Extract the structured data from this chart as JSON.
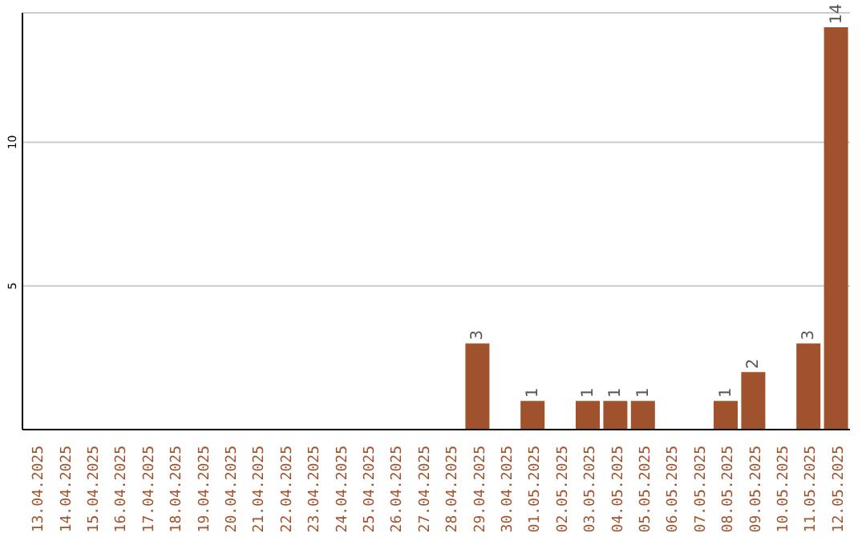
{
  "chart_data": {
    "type": "bar",
    "categories": [
      "13.04.2025",
      "14.04.2025",
      "15.04.2025",
      "16.04.2025",
      "17.04.2025",
      "18.04.2025",
      "19.04.2025",
      "20.04.2025",
      "21.04.2025",
      "22.04.2025",
      "23.04.2025",
      "24.04.2025",
      "25.04.2025",
      "26.04.2025",
      "27.04.2025",
      "28.04.2025",
      "29.04.2025",
      "30.04.2025",
      "01.05.2025",
      "02.05.2025",
      "03.05.2025",
      "04.05.2025",
      "05.05.2025",
      "06.05.2025",
      "07.05.2025",
      "08.05.2025",
      "09.05.2025",
      "10.05.2025",
      "11.05.2025",
      "12.05.2025"
    ],
    "values": [
      0,
      0,
      0,
      0,
      0,
      0,
      0,
      0,
      0,
      0,
      0,
      0,
      0,
      0,
      0,
      0,
      3,
      0,
      1,
      0,
      1,
      1,
      1,
      0,
      0,
      1,
      2,
      0,
      3,
      14
    ],
    "value_labels": [
      null,
      null,
      null,
      null,
      null,
      null,
      null,
      null,
      null,
      null,
      null,
      null,
      null,
      null,
      null,
      null,
      "3",
      null,
      "1",
      null,
      "1",
      "1",
      "1",
      null,
      null,
      "1",
      "2",
      null,
      "3",
      "14"
    ],
    "color": "#a0522d",
    "ylim": [
      0,
      14.5
    ],
    "yticks": [
      5,
      10
    ],
    "grid": "y"
  }
}
